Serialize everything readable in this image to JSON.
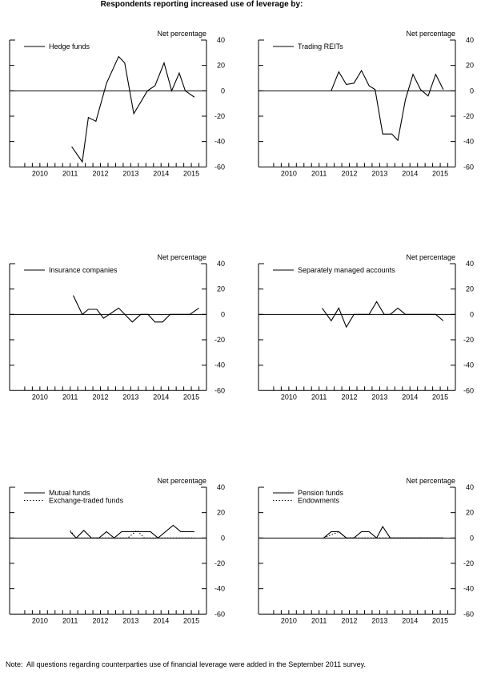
{
  "title": "Respondents reporting increased use of leverage by:",
  "note": "Note:  All questions regarding counterparties use of financial leverage were added in the September 2011 survey.",
  "colors": {
    "foreground": "#000000",
    "background": "#ffffff"
  },
  "chart_data": {
    "type": "line",
    "layout": "3x2-small-multiples",
    "suptitle": "Respondents reporting increased use of leverage by:",
    "ylabel": "Net percentage",
    "ylim": [
      -60,
      40
    ],
    "yticks": [
      40,
      20,
      0,
      -20,
      -40,
      -60
    ],
    "x_range": [
      2009.5,
      2016.0
    ],
    "x_year_labels": [
      "2010",
      "2011",
      "2012",
      "2013",
      "2014",
      "2015"
    ],
    "x_minor_tick_step": 0.25,
    "x_minor_tick_start": 2010.0,
    "x_minor_tick_end": 2015.75,
    "zero_line": true,
    "grid": false,
    "legend_position": "top-left",
    "panels": [
      {
        "id": "hedge-funds",
        "series": [
          {
            "name": "Hedge funds",
            "line": "solid",
            "points": [
              [
                2011.55,
                -44
              ],
              [
                2011.9,
                -56
              ],
              [
                2012.1,
                -21
              ],
              [
                2012.35,
                -24
              ],
              [
                2012.7,
                6
              ],
              [
                2013.1,
                27
              ],
              [
                2013.3,
                22
              ],
              [
                2013.6,
                -18
              ],
              [
                2014.05,
                0
              ],
              [
                2014.3,
                4
              ],
              [
                2014.6,
                22
              ],
              [
                2014.85,
                0
              ],
              [
                2015.1,
                14
              ],
              [
                2015.3,
                0
              ],
              [
                2015.6,
                -5
              ]
            ]
          }
        ]
      },
      {
        "id": "trading-reits",
        "series": [
          {
            "name": "Trading REITs",
            "line": "solid",
            "points": [
              [
                2011.9,
                0
              ],
              [
                2012.15,
                15
              ],
              [
                2012.4,
                5
              ],
              [
                2012.65,
                6
              ],
              [
                2012.9,
                16
              ],
              [
                2013.15,
                4
              ],
              [
                2013.35,
                1
              ],
              [
                2013.6,
                -34
              ],
              [
                2013.9,
                -34
              ],
              [
                2014.1,
                -39
              ],
              [
                2014.35,
                -7
              ],
              [
                2014.6,
                13
              ],
              [
                2014.85,
                1
              ],
              [
                2015.1,
                -4
              ],
              [
                2015.35,
                13
              ],
              [
                2015.6,
                1
              ]
            ]
          }
        ]
      },
      {
        "id": "insurance-companies",
        "series": [
          {
            "name": "Insurance companies",
            "line": "solid",
            "points": [
              [
                2011.6,
                15
              ],
              [
                2011.9,
                0
              ],
              [
                2012.1,
                4
              ],
              [
                2012.38,
                4
              ],
              [
                2012.6,
                -3
              ],
              [
                2013.1,
                5
              ],
              [
                2013.55,
                -6
              ],
              [
                2013.83,
                0
              ],
              [
                2014.07,
                0
              ],
              [
                2014.3,
                -6
              ],
              [
                2014.55,
                -6
              ],
              [
                2014.8,
                0
              ],
              [
                2015.45,
                0
              ],
              [
                2015.75,
                5
              ]
            ]
          }
        ]
      },
      {
        "id": "separately-managed-accounts",
        "series": [
          {
            "name": "Separately managed accounts",
            "line": "solid",
            "points": [
              [
                2011.6,
                5
              ],
              [
                2011.9,
                -5
              ],
              [
                2012.15,
                5
              ],
              [
                2012.4,
                -10
              ],
              [
                2012.65,
                0
              ],
              [
                2013.15,
                0
              ],
              [
                2013.4,
                10
              ],
              [
                2013.65,
                0
              ],
              [
                2013.85,
                0
              ],
              [
                2014.1,
                5
              ],
              [
                2014.35,
                0
              ],
              [
                2015.35,
                0
              ],
              [
                2015.6,
                -5
              ]
            ]
          }
        ]
      },
      {
        "id": "mutual-funds-etf",
        "series": [
          {
            "name": "Mutual funds",
            "line": "solid",
            "points": [
              [
                2011.5,
                5
              ],
              [
                2011.7,
                0
              ],
              [
                2011.95,
                6
              ],
              [
                2012.2,
                0
              ],
              [
                2012.45,
                0
              ],
              [
                2012.7,
                5
              ],
              [
                2012.95,
                0
              ],
              [
                2013.2,
                5
              ],
              [
                2014.15,
                5
              ],
              [
                2014.4,
                0
              ],
              [
                2014.9,
                10
              ],
              [
                2015.15,
                5
              ],
              [
                2015.6,
                5
              ]
            ]
          },
          {
            "name": "Exchange-traded funds",
            "line": "dotted",
            "points": [
              [
                2011.5,
                6
              ],
              [
                2011.7,
                0
              ],
              [
                2013.4,
                0
              ],
              [
                2013.7,
                6
              ],
              [
                2013.95,
                0
              ],
              [
                2015.6,
                0
              ]
            ]
          }
        ]
      },
      {
        "id": "pension-funds-endowments",
        "series": [
          {
            "name": "Pension funds",
            "line": "solid",
            "points": [
              [
                2011.65,
                0
              ],
              [
                2011.9,
                5
              ],
              [
                2012.15,
                5
              ],
              [
                2012.4,
                0
              ],
              [
                2012.65,
                0
              ],
              [
                2012.9,
                5
              ],
              [
                2013.15,
                5
              ],
              [
                2013.4,
                0
              ],
              [
                2013.6,
                9
              ],
              [
                2013.85,
                0
              ],
              [
                2015.6,
                0
              ]
            ]
          },
          {
            "name": "Endowments",
            "line": "dotted",
            "points": [
              [
                2011.65,
                0
              ],
              [
                2012.15,
                5
              ],
              [
                2012.4,
                0
              ],
              [
                2015.6,
                0
              ]
            ]
          }
        ]
      }
    ]
  }
}
